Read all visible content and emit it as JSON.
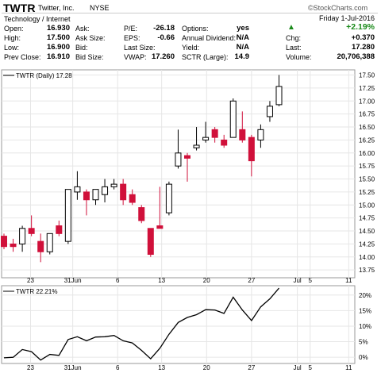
{
  "header": {
    "ticker": "TWTR",
    "company": "Twitter, Inc.",
    "exchange": "NYSE",
    "brand": "©StockCharts.com",
    "sector": "Technology / Internet",
    "date": "Friday   1-Jul-2016",
    "change_pct": "+2.19%",
    "up_color": "#1a8a1a",
    "fields": {
      "open_label": "Open:",
      "open": "16.930",
      "high_label": "High:",
      "high": "17.500",
      "low_label": "Low:",
      "low": "16.900",
      "prev_label": "Prev Close:",
      "prev": "16.910",
      "ask_label": "Ask:",
      "ask": "",
      "asksize_label": "Ask Size:",
      "asksize": "",
      "bid_label": "Bid:",
      "bid": "",
      "bidsize_label": "Bid Size:",
      "bidsize": "",
      "pe_label": "P/E:",
      "pe": "-26.18",
      "eps_label": "EPS:",
      "eps": "-0.66",
      "lastsize_label": "Last Size:",
      "lastsize": "",
      "vwap_label": "VWAP:",
      "vwap": "17.260",
      "options_label": "Options:",
      "options": "yes",
      "div_label": "Annual Dividend:",
      "div": "N/A",
      "yield_label": "Yield:",
      "yield": "N/A",
      "sctr_label": "SCTR (Large):",
      "sctr": "14.9",
      "chg_label": "Chg:",
      "chg": "+0.370",
      "last_label": "Last:",
      "last": "17.280",
      "volume_label": "Volume:",
      "volume": "20,706,388"
    }
  },
  "chart_data": [
    {
      "type": "candlestick",
      "title": "TWTR (Daily) 17.28",
      "up_color": "#ffffff",
      "down_color": "#d0103a",
      "ylim": [
        13.6,
        17.6
      ],
      "yticks": [
        "17.50",
        "17.25",
        "17.00",
        "16.75",
        "16.50",
        "16.25",
        "16.00",
        "15.75",
        "15.50",
        "15.25",
        "15.00",
        "14.75",
        "14.50",
        "14.25",
        "14.00",
        "13.75"
      ],
      "xticks": [
        "23",
        "31Jun",
        "6",
        "13",
        "20",
        "27",
        "Jul",
        "5",
        "11"
      ],
      "candles": [
        {
          "date": "May 19",
          "open": 14.4,
          "high": 14.45,
          "low": 14.15,
          "close": 14.2
        },
        {
          "date": "May 20",
          "open": 14.25,
          "high": 14.35,
          "low": 14.1,
          "close": 14.2
        },
        {
          "date": "May 23",
          "open": 14.25,
          "high": 14.6,
          "low": 14.1,
          "close": 14.55
        },
        {
          "date": "May 24",
          "open": 14.55,
          "high": 14.8,
          "low": 14.4,
          "close": 14.45
        },
        {
          "date": "May 25",
          "open": 14.3,
          "high": 14.45,
          "low": 13.9,
          "close": 14.1
        },
        {
          "date": "May 26",
          "open": 14.1,
          "high": 14.45,
          "low": 14.05,
          "close": 14.45
        },
        {
          "date": "May 27",
          "open": 14.6,
          "high": 14.7,
          "low": 14.4,
          "close": 14.45
        },
        {
          "date": "May 31",
          "open": 14.3,
          "high": 15.3,
          "low": 14.25,
          "close": 15.3
        },
        {
          "date": "Jun 1",
          "open": 15.25,
          "high": 15.65,
          "low": 15.1,
          "close": 15.35
        },
        {
          "date": "Jun 2",
          "open": 15.25,
          "high": 15.3,
          "low": 14.8,
          "close": 15.1
        },
        {
          "date": "Jun 3",
          "open": 15.1,
          "high": 15.3,
          "low": 15.0,
          "close": 15.3
        },
        {
          "date": "Jun 6",
          "open": 15.2,
          "high": 15.5,
          "low": 15.05,
          "close": 15.35
        },
        {
          "date": "Jun 7",
          "open": 15.35,
          "high": 15.5,
          "low": 15.3,
          "close": 15.4
        },
        {
          "date": "Jun 8",
          "open": 15.4,
          "high": 15.5,
          "low": 15.0,
          "close": 15.1
        },
        {
          "date": "Jun 9",
          "open": 15.2,
          "high": 15.3,
          "low": 15.0,
          "close": 15.05
        },
        {
          "date": "Jun 10",
          "open": 14.95,
          "high": 15.0,
          "low": 14.65,
          "close": 14.7
        },
        {
          "date": "Jun 13",
          "open": 14.55,
          "high": 14.55,
          "low": 14.0,
          "close": 14.05
        },
        {
          "date": "Jun 14",
          "open": 14.6,
          "high": 15.35,
          "low": 14.55,
          "close": 14.55
        },
        {
          "date": "Jun 15",
          "open": 14.85,
          "high": 15.45,
          "low": 14.8,
          "close": 15.4
        },
        {
          "date": "Jun 16",
          "open": 15.75,
          "high": 16.45,
          "low": 15.7,
          "close": 16.0
        },
        {
          "date": "Jun 17",
          "open": 15.95,
          "high": 16.0,
          "low": 15.45,
          "close": 15.9
        },
        {
          "date": "Jun 20",
          "open": 16.1,
          "high": 16.5,
          "low": 16.05,
          "close": 16.15
        },
        {
          "date": "Jun 21",
          "open": 16.25,
          "high": 16.6,
          "low": 16.2,
          "close": 16.3
        },
        {
          "date": "Jun 22",
          "open": 16.45,
          "high": 16.5,
          "low": 16.2,
          "close": 16.3
        },
        {
          "date": "Jun 23",
          "open": 16.25,
          "high": 16.35,
          "low": 16.1,
          "close": 16.15
        },
        {
          "date": "Jun 24",
          "open": 16.3,
          "high": 17.05,
          "low": 16.3,
          "close": 17.0
        },
        {
          "date": "Jun 27",
          "open": 16.45,
          "high": 16.8,
          "low": 16.2,
          "close": 16.25
        },
        {
          "date": "Jun 28",
          "open": 16.3,
          "high": 16.35,
          "low": 15.55,
          "close": 15.85
        },
        {
          "date": "Jun 29",
          "open": 16.25,
          "high": 16.55,
          "low": 16.1,
          "close": 16.45
        },
        {
          "date": "Jun 30",
          "open": 16.7,
          "high": 17.0,
          "low": 16.6,
          "close": 16.9
        },
        {
          "date": "Jul 1",
          "open": 16.93,
          "high": 17.5,
          "low": 16.9,
          "close": 17.28
        }
      ]
    },
    {
      "type": "line",
      "title": "TWTR 22.21%",
      "color": "#000000",
      "ylim": [
        -2,
        23
      ],
      "yticks": [
        "20%",
        "15%",
        "10%",
        "5%",
        "0%"
      ],
      "xticks": [
        "23",
        "31Jun",
        "6",
        "13",
        "20",
        "27",
        "Jul",
        "5",
        "11"
      ],
      "values": [
        -0.2,
        0.0,
        2.5,
        1.8,
        -0.9,
        0.9,
        0.6,
        5.7,
        6.6,
        5.3,
        6.5,
        6.6,
        7.0,
        5.3,
        4.6,
        2.2,
        -0.5,
        2.9,
        7.4,
        11.2,
        12.8,
        13.7,
        15.3,
        15.2,
        14.1,
        19.3,
        15.2,
        11.8,
        16.2,
        18.8,
        22.2
      ]
    }
  ]
}
